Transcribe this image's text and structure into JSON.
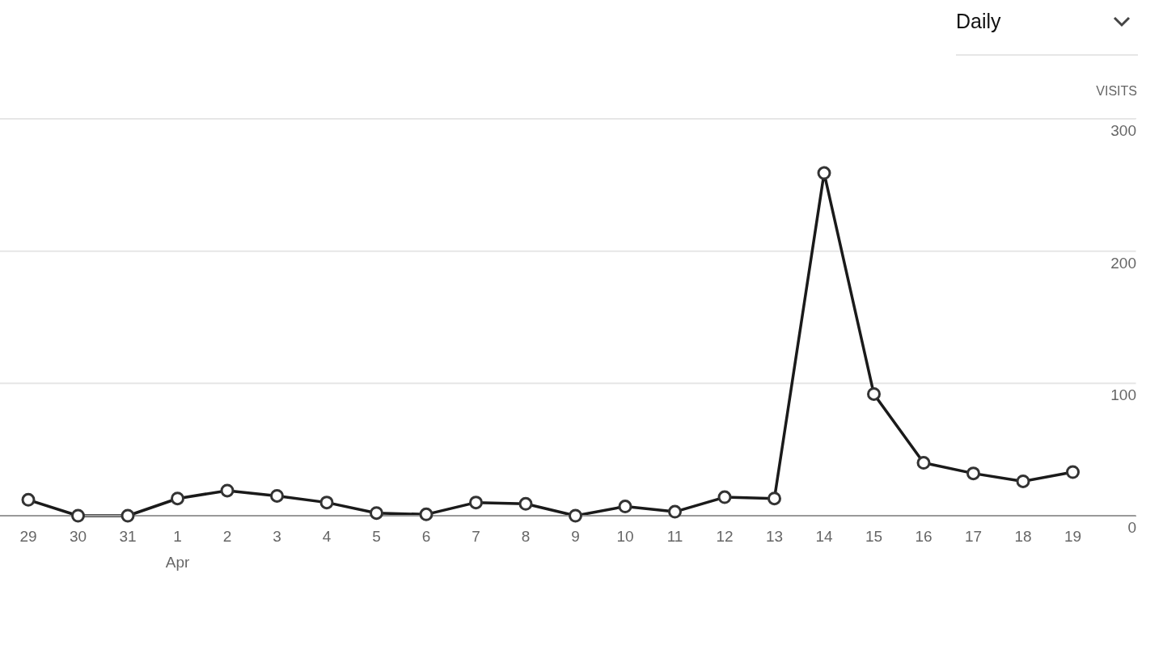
{
  "chart_data": {
    "type": "line",
    "subtitle": "Daily",
    "ylabel": "VISITS",
    "categories": [
      "29",
      "30",
      "31",
      "1\nApr",
      "2",
      "3",
      "4",
      "5",
      "6",
      "7",
      "8",
      "9",
      "10",
      "11",
      "12",
      "13",
      "14",
      "15",
      "16",
      "17",
      "18",
      "19"
    ],
    "values": [
      12,
      0,
      0,
      13,
      19,
      15,
      10,
      2,
      1,
      10,
      9,
      0,
      7,
      3,
      14,
      13,
      259,
      92,
      40,
      32,
      26,
      33
    ],
    "color": "#1a1a1a",
    "marker": "circle",
    "ylim": [
      0,
      300
    ],
    "yticks": [
      0,
      100,
      200,
      300
    ],
    "grid": "y"
  }
}
